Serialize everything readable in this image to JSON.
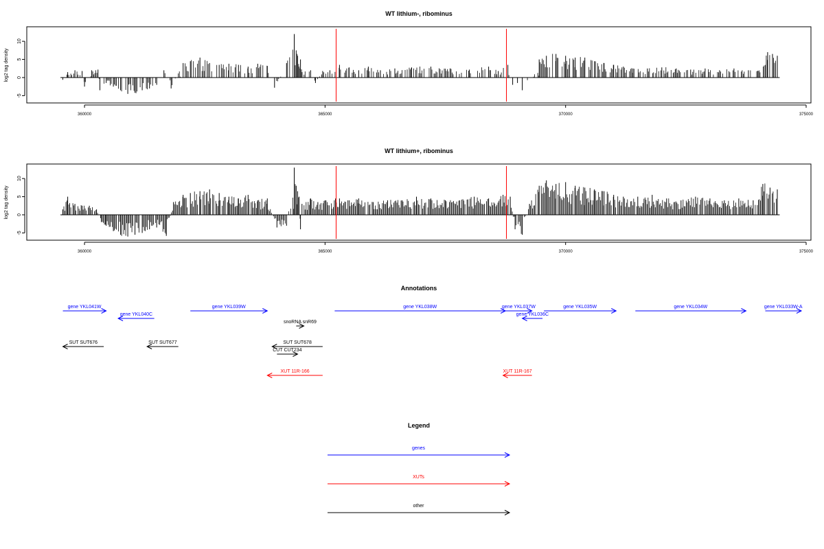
{
  "chart_data": [
    {
      "type": "bar",
      "title": "WT lithium-, ribominus",
      "ylabel": "log2 tag density",
      "xlim": [
        358800,
        375100
      ],
      "ylim": [
        -7,
        14
      ],
      "xticks": [
        360000,
        365000,
        370000,
        375000
      ],
      "yticks": [
        -5,
        0,
        5,
        10
      ],
      "zero_baseline": [
        359500,
        374450
      ],
      "red_markers": [
        365230,
        368770
      ],
      "series": [
        {
          "x": [
            359550,
            359650,
            359800,
            359950,
            360000,
            360150,
            360280,
            360320,
            360450,
            360600,
            360750,
            360900,
            361050,
            361200,
            361350,
            361500,
            361650,
            361800,
            362050,
            362200,
            362400,
            362600,
            362800,
            363000,
            363200,
            363400,
            363600,
            363800,
            363950,
            364200,
            364360,
            364400,
            364430,
            364460,
            364490,
            364520,
            364700,
            364800,
            364950,
            365100,
            365300,
            365500,
            365700,
            365900,
            366150,
            366450,
            366800,
            367200,
            367600,
            368000,
            368400,
            368600,
            368800,
            368900,
            369000,
            369100,
            369450,
            369600,
            369800,
            370000,
            370200,
            370400,
            370600,
            370800,
            371000,
            371200,
            371400,
            371700,
            372000,
            372300,
            372600,
            372900,
            373200,
            373500,
            373800,
            374000,
            374200,
            374300,
            374400
          ],
          "values": [
            -0.6,
            1.5,
            2.0,
            1.8,
            -2.5,
            2.0,
            2.2,
            -3.5,
            -1.5,
            -2.5,
            -3.5,
            -4.5,
            -4.2,
            -3.5,
            -3.0,
            -2.0,
            2.0,
            -3.0,
            4.0,
            4.5,
            5.5,
            4.0,
            3.5,
            3.8,
            3.5,
            3.0,
            3.8,
            3.2,
            -2.8,
            4.0,
            12.0,
            7.5,
            6.0,
            3.0,
            5.0,
            1.5,
            2.0,
            -1.5,
            1.8,
            2.0,
            3.5,
            2.8,
            2.0,
            3.0,
            2.0,
            2.5,
            2.8,
            3.0,
            2.5,
            2.2,
            3.0,
            1.8,
            3.5,
            -2.0,
            -1.5,
            -3.5,
            5.0,
            6.0,
            6.5,
            6.0,
            5.5,
            5.5,
            4.5,
            4.0,
            3.5,
            3.0,
            2.5,
            2.5,
            2.8,
            2.5,
            2.2,
            2.5,
            2.0,
            2.5,
            2.0,
            1.8,
            7.0,
            6.5,
            6.0
          ]
        }
      ]
    },
    {
      "type": "bar",
      "title": "WT lithium+, ribominus",
      "ylabel": "log2 tag density",
      "xlim": [
        358800,
        375100
      ],
      "ylim": [
        -7,
        14
      ],
      "xticks": [
        360000,
        365000,
        370000,
        375000
      ],
      "yticks": [
        -5,
        0,
        5,
        10
      ],
      "zero_baseline": [
        359500,
        374450
      ],
      "red_markers": [
        365230,
        368770
      ],
      "series": [
        {
          "x": [
            359550,
            359650,
            359800,
            359950,
            360100,
            360250,
            360350,
            360450,
            360600,
            360750,
            360900,
            361050,
            361200,
            361350,
            361500,
            361700,
            361850,
            362050,
            362200,
            362400,
            362600,
            362800,
            363000,
            363200,
            363400,
            363600,
            363800,
            364000,
            364200,
            364360,
            364400,
            364430,
            364460,
            364490,
            364520,
            364700,
            364850,
            365000,
            365300,
            365500,
            365700,
            366000,
            366300,
            366600,
            366900,
            367200,
            367500,
            367800,
            368100,
            368400,
            368700,
            368850,
            368950,
            369100,
            369250,
            369450,
            369600,
            369800,
            370000,
            370200,
            370400,
            370600,
            370800,
            371000,
            371200,
            371500,
            371800,
            372100,
            372400,
            372700,
            373000,
            373300,
            373600,
            373900,
            374100,
            374250,
            374400
          ],
          "values": [
            1.5,
            5.0,
            3.0,
            2.5,
            2.5,
            1.5,
            -2.0,
            -3.0,
            -4.5,
            -5.5,
            -6.0,
            -5.5,
            -5.0,
            -4.0,
            -3.5,
            -5.8,
            3.5,
            5.5,
            6.0,
            6.5,
            7.0,
            6.0,
            5.0,
            4.5,
            5.5,
            4.0,
            4.5,
            -3.5,
            -3.0,
            13.0,
            8.0,
            6.5,
            5.0,
            -4.0,
            3.0,
            4.5,
            3.5,
            4.0,
            4.5,
            4.0,
            4.5,
            3.5,
            4.0,
            4.0,
            5.0,
            4.5,
            4.0,
            4.0,
            5.0,
            4.5,
            5.5,
            5.0,
            -4.0,
            -5.5,
            3.0,
            8.0,
            9.5,
            8.5,
            9.0,
            8.0,
            7.5,
            7.0,
            6.5,
            5.5,
            5.0,
            5.0,
            5.5,
            4.5,
            4.0,
            5.0,
            4.5,
            4.0,
            4.5,
            4.0,
            8.5,
            7.5,
            7.0
          ]
        }
      ]
    },
    {
      "type": "other",
      "title": "Annotations",
      "features": [
        {
          "label": "gene YKL041W",
          "start": 359550,
          "end": 360450,
          "strand": "+",
          "color": "#0000ff",
          "row": 0
        },
        {
          "label": "gene YKL040C",
          "start": 360700,
          "end": 361450,
          "strand": "-",
          "color": "#0000ff",
          "row": 1
        },
        {
          "label": "gene YKL039W",
          "start": 362200,
          "end": 363800,
          "strand": "+",
          "color": "#0000ff",
          "row": 0
        },
        {
          "label": "gene YKL038W",
          "start": 365200,
          "end": 368750,
          "strand": "+",
          "color": "#0000ff",
          "row": 0
        },
        {
          "label": "gene YKL037W",
          "start": 368750,
          "end": 369300,
          "strand": "+",
          "color": "#0000ff",
          "row": 0
        },
        {
          "label": "gene YKL036C",
          "start": 369100,
          "end": 369520,
          "strand": "-",
          "color": "#0000ff",
          "row": 1
        },
        {
          "label": "gene YKL035W",
          "start": 369550,
          "end": 371050,
          "strand": "+",
          "color": "#0000ff",
          "row": 0
        },
        {
          "label": "gene YKL034W",
          "start": 371450,
          "end": 373750,
          "strand": "+",
          "color": "#0000ff",
          "row": 0
        },
        {
          "label": "gene YKL033W-A",
          "start": 374150,
          "end": 374900,
          "strand": "+",
          "color": "#0000ff",
          "row": 0
        },
        {
          "label": "snoRNA snR69",
          "start": 364400,
          "end": 364560,
          "strand": "+",
          "color": "#000000",
          "row": 2
        },
        {
          "label": "SUT SUT676",
          "start": 359550,
          "end": 360400,
          "strand": "-",
          "color": "#000000",
          "row": 3
        },
        {
          "label": "SUT SUT677",
          "start": 361300,
          "end": 361950,
          "strand": "-",
          "color": "#000000",
          "row": 3
        },
        {
          "label": "SUT SUT678",
          "start": 363900,
          "end": 364950,
          "strand": "-",
          "color": "#000000",
          "row": 3
        },
        {
          "label": "CUT CUT234",
          "start": 364000,
          "end": 364430,
          "strand": "+",
          "color": "#000000",
          "row": 4
        },
        {
          "label": "XUT 11R-166",
          "start": 363800,
          "end": 364950,
          "strand": "-",
          "color": "#ff0000",
          "row": 5
        },
        {
          "label": "XUT 11R-167",
          "start": 368700,
          "end": 369300,
          "strand": "-",
          "color": "#ff0000",
          "row": 5
        }
      ]
    },
    {
      "type": "other",
      "title": "Legend",
      "entries": [
        {
          "label": "genes",
          "color": "#0000ff"
        },
        {
          "label": "XUTs",
          "color": "#ff0000"
        },
        {
          "label": "other",
          "color": "#000000"
        }
      ]
    }
  ]
}
